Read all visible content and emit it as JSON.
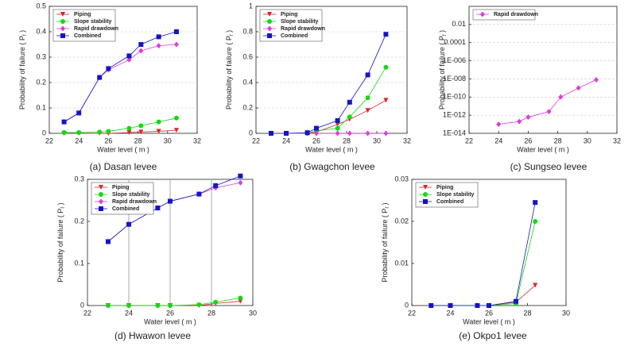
{
  "chart_data": [
    {
      "type": "line",
      "caption": "(a) Dasan levee",
      "xlabel": "Water level ( m )",
      "ylabel": {
        "text": "Probability of failure ( P",
        "sub": "f",
        "end": " )"
      },
      "x": [
        23,
        24,
        25.4,
        26,
        27.4,
        28.2,
        29.4,
        30.6
      ],
      "xlim": [
        22,
        32
      ],
      "xticks": [
        22,
        24,
        26,
        28,
        30,
        32
      ],
      "ylim": [
        0,
        0.5
      ],
      "yticks": [
        0,
        0.1,
        0.2,
        0.3,
        0.4,
        0.5
      ],
      "grid": "y",
      "legend": "upper left",
      "series": [
        {
          "name": "Piping",
          "color": "#e02424",
          "marker": "triangle-down",
          "values": [
            0,
            0,
            0,
            0,
            0.003,
            0.005,
            0.008,
            0.012
          ]
        },
        {
          "name": "Slope stability",
          "color": "#14d814",
          "marker": "circle",
          "values": [
            0.003,
            0.003,
            0.005,
            0.008,
            0.02,
            0.03,
            0.045,
            0.06
          ]
        },
        {
          "name": "Rapid drawdown",
          "color": "#dc3cdc",
          "marker": "diamond",
          "values": [
            0.045,
            0.08,
            0.22,
            0.25,
            0.29,
            0.325,
            0.345,
            0.35
          ]
        },
        {
          "name": "Combined",
          "color": "#1414c8",
          "marker": "square",
          "values": [
            0.045,
            0.08,
            0.22,
            0.255,
            0.305,
            0.35,
            0.38,
            0.4
          ]
        }
      ]
    },
    {
      "type": "line",
      "caption": "(b) Gwagchon levee",
      "xlabel": "Water level ( m )",
      "ylabel": {
        "text": "Probability of failure ( P",
        "sub": "f",
        "end": " )"
      },
      "x": [
        23,
        24,
        25.4,
        26,
        27.4,
        28.2,
        29.4,
        30.6
      ],
      "xlim": [
        22,
        32
      ],
      "xticks": [
        22,
        24,
        26,
        28,
        30,
        32
      ],
      "ylim": [
        0,
        1
      ],
      "yticks": [
        0,
        0.2,
        0.4,
        0.6,
        0.8,
        1
      ],
      "grid": "y",
      "legend": "upper left",
      "series": [
        {
          "name": "Piping",
          "color": "#e02424",
          "marker": "triangle-down",
          "values": [
            0,
            0,
            0,
            0.01,
            0.07,
            0.11,
            0.18,
            0.26
          ]
        },
        {
          "name": "Slope stability",
          "color": "#14d814",
          "marker": "circle",
          "values": [
            0,
            0,
            0,
            0.02,
            0.04,
            0.13,
            0.28,
            0.52
          ]
        },
        {
          "name": "Rapid drawdown",
          "color": "#dc3cdc",
          "marker": "diamond",
          "values": [
            0,
            0,
            0,
            0,
            0,
            0,
            0,
            0
          ]
        },
        {
          "name": "Combined",
          "color": "#1414c8",
          "marker": "square",
          "values": [
            0,
            0,
            0.005,
            0.04,
            0.1,
            0.245,
            0.46,
            0.78
          ]
        }
      ]
    },
    {
      "type": "line",
      "caption": "(c) Sungseo levee",
      "xlabel": "Water level ( m )",
      "ylabel": {
        "text": "Probability of failure ( P",
        "sub": "f",
        "end": " )"
      },
      "x": [
        24,
        25.4,
        26,
        27.4,
        28.2,
        29.4,
        30.6
      ],
      "xlim": [
        22,
        32
      ],
      "xticks": [
        22,
        24,
        26,
        28,
        30,
        32
      ],
      "log_scale": true,
      "ylim": [
        1e-14,
        1
      ],
      "yticks": [
        {
          "value": 1e-14,
          "label": "1E-014"
        },
        {
          "value": 1e-12,
          "label": "1E-012"
        },
        {
          "value": 1e-10,
          "label": "1E-010"
        },
        {
          "value": 1e-08,
          "label": "1E-008"
        },
        {
          "value": 1e-06,
          "label": "1E-006"
        },
        0.0001,
        0.01
      ],
      "grid": "y",
      "legend": "upper left",
      "series": [
        {
          "name": "Rapid drawdown",
          "color": "#dc3cdc",
          "marker": "diamond",
          "values": [
            1e-13,
            2e-13,
            6e-13,
            2.5e-12,
            1e-10,
            1e-09,
            8e-09
          ]
        }
      ]
    },
    {
      "type": "line",
      "caption": "(d) Hwawon levee",
      "xlabel": "Water level ( m )",
      "ylabel": {
        "text": "Probability of failure ( P",
        "sub": "f",
        "end": " )"
      },
      "x": [
        23,
        24,
        25.4,
        26,
        27.4,
        28.2,
        29.4
      ],
      "xlim": [
        22,
        30
      ],
      "xticks": [
        22,
        24,
        26,
        28,
        30
      ],
      "ylim": [
        0,
        0.3
      ],
      "yticks": [
        0,
        0.1,
        0.2,
        0.3
      ],
      "grid": "x",
      "legend": "upper left",
      "series": [
        {
          "name": "Piping",
          "color": "#e02424",
          "marker": "triangle-down",
          "values": [
            0,
            0,
            0,
            0,
            0,
            0.005,
            0.01
          ]
        },
        {
          "name": "Slope stability",
          "color": "#14d814",
          "marker": "circle",
          "values": [
            0,
            0,
            0,
            0,
            0.002,
            0.008,
            0.018
          ]
        },
        {
          "name": "Rapid drawdown",
          "color": "#dc3cdc",
          "marker": "diamond",
          "values": [
            0.152,
            0.193,
            0.232,
            0.248,
            0.265,
            0.28,
            0.292
          ]
        },
        {
          "name": "Combined",
          "color": "#1414c8",
          "marker": "square",
          "values": [
            0.152,
            0.193,
            0.232,
            0.248,
            0.265,
            0.285,
            0.308
          ]
        }
      ]
    },
    {
      "type": "line",
      "caption": "(e) Okpo1 levee",
      "xlabel": "Water level ( m )",
      "ylabel": {
        "text": "Probability of failure ( P",
        "sub": "f",
        "end": " )"
      },
      "x": [
        23,
        24,
        25.4,
        26,
        27.4,
        28.4
      ],
      "xlim": [
        22,
        30
      ],
      "xticks": [
        22,
        24,
        26,
        28,
        30
      ],
      "ylim": [
        0,
        0.03
      ],
      "yticks": [
        0,
        0.01,
        0.02,
        0.03
      ],
      "grid": "none",
      "legend": "upper left",
      "series": [
        {
          "name": "Piping",
          "color": "#e02424",
          "marker": "triangle-down",
          "values": [
            0,
            0,
            0,
            0,
            0.0008,
            0.0048
          ]
        },
        {
          "name": "Slope stability",
          "color": "#14d814",
          "marker": "circle",
          "values": [
            0,
            0,
            0,
            0,
            0.0005,
            0.02
          ]
        },
        {
          "name": "Combined",
          "color": "#1414c8",
          "marker": "square",
          "values": [
            0,
            0,
            0,
            0,
            0.001,
            0.0245
          ]
        }
      ]
    }
  ]
}
